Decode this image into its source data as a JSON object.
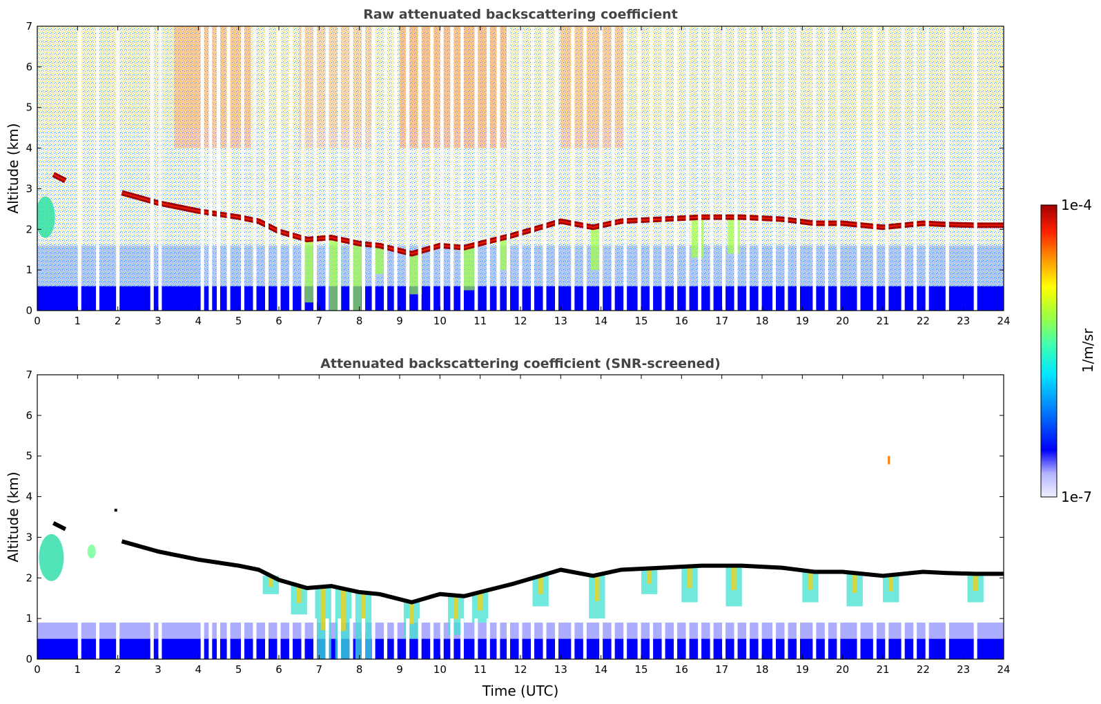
{
  "colormap": [
    "#f0f0ff",
    "#b4b4ff",
    "#0000ff",
    "#0080ff",
    "#00e6ff",
    "#40ffb0",
    "#a0ff40",
    "#ffff00",
    "#ff9000",
    "#ff2000",
    "#a00000"
  ],
  "chart_data": [
    {
      "type": "heatmap",
      "title": "Raw attenuated backscattering coefficient",
      "xlabel": "",
      "ylabel": "Altitude (km)",
      "xlim": [
        0,
        24
      ],
      "ylim": [
        0,
        7
      ],
      "xticks": [
        "0",
        "1",
        "2",
        "3",
        "4",
        "5",
        "6",
        "7",
        "8",
        "9",
        "10",
        "11",
        "12",
        "13",
        "14",
        "15",
        "16",
        "17",
        "18",
        "19",
        "20",
        "21",
        "22",
        "23",
        "24"
      ],
      "yticks": [
        "0",
        "1",
        "2",
        "3",
        "4",
        "5",
        "6",
        "7"
      ],
      "data_gaps_utc": [
        1.05,
        1.5,
        2.0,
        2.85,
        3.05,
        4.1,
        4.3,
        4.5,
        4.75,
        5.1,
        5.4,
        5.7,
        6.0,
        6.3,
        6.6,
        6.9,
        7.2,
        7.5,
        7.8,
        8.1,
        8.35,
        8.65,
        8.9,
        9.2,
        9.5,
        9.8,
        10.05,
        10.3,
        10.55,
        10.9,
        11.2,
        11.45,
        11.7,
        12.0,
        12.3,
        12.6,
        12.9,
        13.3,
        13.6,
        14.0,
        14.3,
        14.6,
        14.95,
        15.25,
        15.55,
        15.85,
        16.15,
        16.45,
        16.75,
        17.05,
        17.35,
        17.65,
        17.95,
        18.3,
        18.6,
        18.9,
        19.3,
        19.6,
        19.9,
        20.4,
        20.8,
        21.1,
        21.5,
        21.8,
        22.1,
        22.6,
        23.3
      ]
    },
    {
      "type": "heatmap",
      "title": "Attenuated backscattering coefficient (SNR-screened)",
      "xlabel": "Time (UTC)",
      "ylabel": "Altitude (km)",
      "xlim": [
        0,
        24
      ],
      "ylim": [
        0,
        7
      ],
      "xticks": [
        "0",
        "1",
        "2",
        "3",
        "4",
        "5",
        "6",
        "7",
        "8",
        "9",
        "10",
        "11",
        "12",
        "13",
        "14",
        "15",
        "16",
        "17",
        "18",
        "19",
        "20",
        "21",
        "22",
        "23",
        "24"
      ],
      "yticks": [
        "0",
        "1",
        "2",
        "3",
        "4",
        "5",
        "6",
        "7"
      ],
      "cloud_base_km": [
        {
          "t": 0.4,
          "z": 3.35
        },
        {
          "t": 0.7,
          "z": 3.2
        },
        {
          "t": 2.1,
          "z": 2.9
        },
        {
          "t": 3.0,
          "z": 2.65
        },
        {
          "t": 4.0,
          "z": 2.45
        },
        {
          "t": 5.0,
          "z": 2.3
        },
        {
          "t": 5.5,
          "z": 2.2
        },
        {
          "t": 6.0,
          "z": 1.95
        },
        {
          "t": 6.7,
          "z": 1.75
        },
        {
          "t": 7.3,
          "z": 1.8
        },
        {
          "t": 8.0,
          "z": 1.65
        },
        {
          "t": 8.5,
          "z": 1.6
        },
        {
          "t": 9.3,
          "z": 1.4
        },
        {
          "t": 10.0,
          "z": 1.6
        },
        {
          "t": 10.6,
          "z": 1.55
        },
        {
          "t": 11.2,
          "z": 1.7
        },
        {
          "t": 11.8,
          "z": 1.85
        },
        {
          "t": 12.5,
          "z": 2.05
        },
        {
          "t": 13.0,
          "z": 2.2
        },
        {
          "t": 13.8,
          "z": 2.05
        },
        {
          "t": 14.5,
          "z": 2.2
        },
        {
          "t": 15.5,
          "z": 2.25
        },
        {
          "t": 16.5,
          "z": 2.3
        },
        {
          "t": 17.5,
          "z": 2.3
        },
        {
          "t": 18.5,
          "z": 2.25
        },
        {
          "t": 19.3,
          "z": 2.15
        },
        {
          "t": 20.0,
          "z": 2.15
        },
        {
          "t": 21.0,
          "z": 2.05
        },
        {
          "t": 22.0,
          "z": 2.15
        },
        {
          "t": 22.6,
          "z": 2.12
        },
        {
          "t": 23.3,
          "z": 2.1
        },
        {
          "t": 24.0,
          "z": 2.1
        }
      ]
    }
  ],
  "colorbar": {
    "label": "1/m/sr",
    "max_label": "1e-4",
    "min_label": "1e-7",
    "min_value": 1e-07,
    "max_value": 0.0001,
    "scale": "log"
  }
}
